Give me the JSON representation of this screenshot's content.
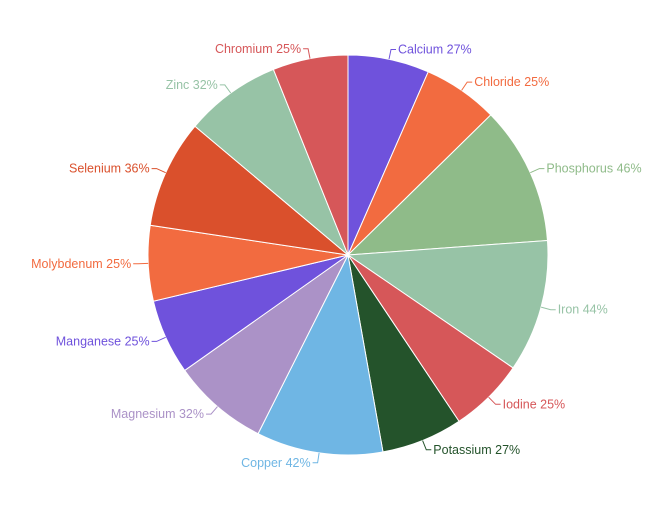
{
  "chart_data": {
    "type": "pie",
    "start_angle_deg": 0,
    "direction": "clockwise",
    "slices": [
      {
        "label": "Calcium 27%",
        "value": 27,
        "color": "#6f52dc"
      },
      {
        "label": "Chloride 25%",
        "value": 25,
        "color": "#f26b40"
      },
      {
        "label": "Phosphorus 46%",
        "value": 46,
        "color": "#8fbb89"
      },
      {
        "label": "Iron 44%",
        "value": 44,
        "color": "#97c3a6"
      },
      {
        "label": "Iodine 25%",
        "value": 25,
        "color": "#d65759"
      },
      {
        "label": "Potassium 27%",
        "value": 27,
        "color": "#24532b"
      },
      {
        "label": "Copper 42%",
        "value": 42,
        "color": "#6fb6e4"
      },
      {
        "label": "Magnesium 32%",
        "value": 32,
        "color": "#ab92c7"
      },
      {
        "label": "Manganese 25%",
        "value": 25,
        "color": "#6f52dc"
      },
      {
        "label": "Molybdenum 25%",
        "value": 25,
        "color": "#f26b40"
      },
      {
        "label": "Selenium 36%",
        "value": 36,
        "color": "#da502c"
      },
      {
        "label": "Zinc 32%",
        "value": 32,
        "color": "#97c3a6"
      },
      {
        "label": "Chromium 25%",
        "value": 25,
        "color": "#d65759"
      }
    ]
  }
}
